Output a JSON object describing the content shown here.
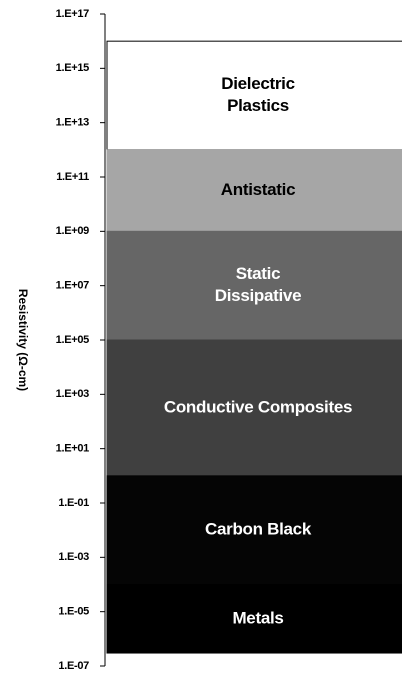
{
  "chart_data": {
    "type": "floating-bar",
    "y_label": "Resistivity (Ω-cm)",
    "log_scale": true,
    "ylim": [
      1e-07,
      1e+17
    ],
    "yticks": [
      {
        "value": 1e+17,
        "label": "1.E+17"
      },
      {
        "value": 1000000000000000.0,
        "label": "1.E+15"
      },
      {
        "value": 10000000000000.0,
        "label": "1.E+13"
      },
      {
        "value": 100000000000.0,
        "label": "1.E+11"
      },
      {
        "value": 1000000000.0,
        "label": "1.E+09"
      },
      {
        "value": 10000000.0,
        "label": "1.E+07"
      },
      {
        "value": 100000.0,
        "label": "1.E+05"
      },
      {
        "value": 1000.0,
        "label": "1.E+03"
      },
      {
        "value": 10,
        "label": "1.E+01"
      },
      {
        "value": 0.1,
        "label": "1.E-01"
      },
      {
        "value": 0.001,
        "label": "1.E-03"
      },
      {
        "value": 1e-05,
        "label": "1.E-05"
      },
      {
        "value": 1e-07,
        "label": "1.E-07"
      }
    ],
    "bands": [
      {
        "label": [
          "Dielectric",
          "Plastics"
        ],
        "low": 1000000000000.0,
        "high": 1e+16,
        "color": "#ffffff",
        "text_color": "#000000"
      },
      {
        "label": [
          "Antistatic"
        ],
        "low": 1000000000.0,
        "high": 1000000000000.0,
        "color": "#a6a6a6",
        "text_color": "#000000"
      },
      {
        "label": [
          "Static",
          "Dissipative"
        ],
        "low": 100000.0,
        "high": 1000000000.0,
        "color": "#666666",
        "text_color": "#ffffff"
      },
      {
        "label": [
          "Conductive Composites"
        ],
        "low": 1,
        "high": 100000.0,
        "color": "#404040",
        "text_color": "#ffffff"
      },
      {
        "label": [
          "Carbon Black"
        ],
        "low": 0.0001,
        "high": 1,
        "color": "#050505",
        "text_color": "#ffffff"
      },
      {
        "label": [
          "Metals"
        ],
        "low": 3e-07,
        "high": 0.0001,
        "color": "#000000",
        "text_color": "#ffffff"
      }
    ]
  }
}
